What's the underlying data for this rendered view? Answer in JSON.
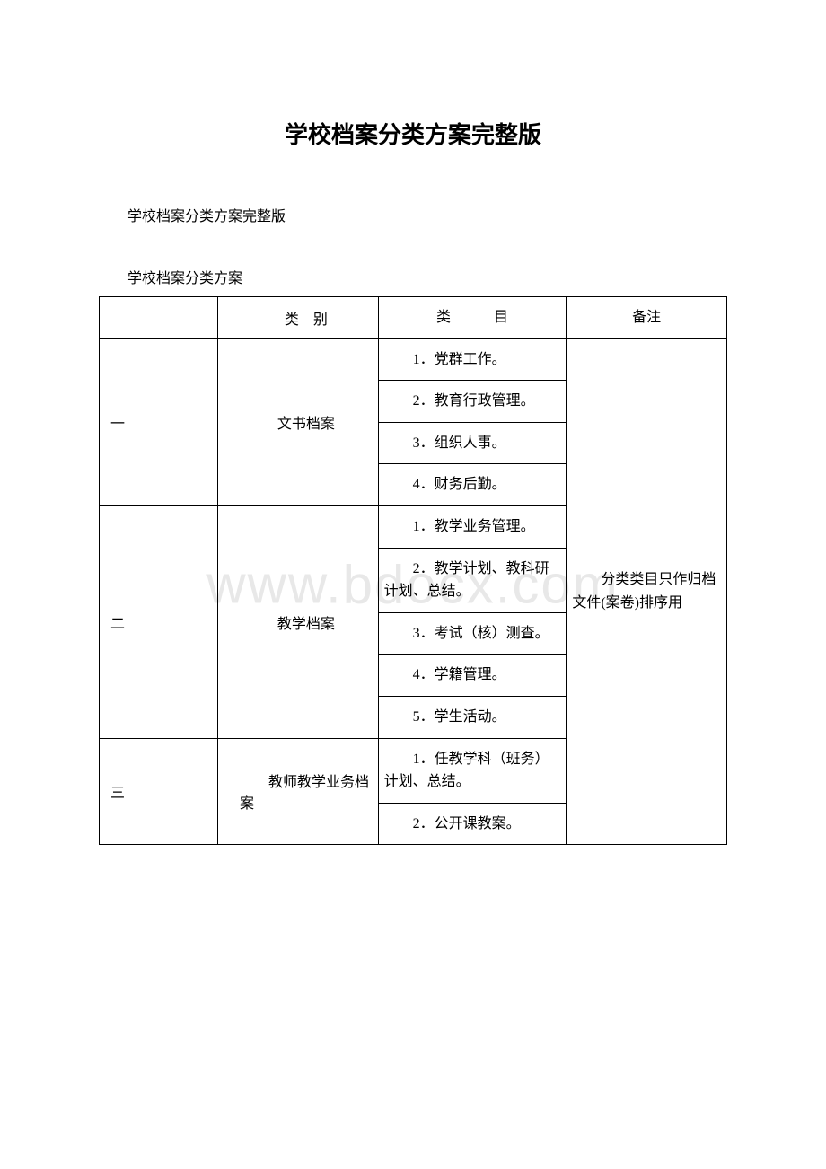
{
  "title": "学校档案分类方案完整版",
  "subtitle": "学校档案分类方案完整版",
  "tableCaption": "学校档案分类方案",
  "watermark": "www.bdocx.com",
  "header": {
    "col1": "",
    "col2": "类　别",
    "col3": "类　　　目",
    "col4": "备注"
  },
  "note": "　　分类类目只作归档文件(案卷)排序用",
  "rows": [
    {
      "num": "一",
      "category": "文书档案",
      "items": [
        "　　1．党群工作。",
        "　　2．教育行政管理。",
        "　　3．组织人事。",
        "　　4．财务后勤。"
      ]
    },
    {
      "num": "二",
      "category": "教学档案",
      "items": [
        "　　1．教学业务管理。",
        "　　2．教学计划、教科研计划、总结。",
        "　　3．考试（核）测查。",
        "　　4．学籍管理。",
        "　　5．学生活动。"
      ]
    },
    {
      "num": "三",
      "category": "　　教师教学业务档案",
      "items": [
        "　　1．任教学科（班务）计划、总结。",
        "　　2．公开课教案。"
      ]
    }
  ],
  "table_style": {
    "border_color": "#000000",
    "text_color": "#000000",
    "background_color": "#ffffff",
    "font_size": 16,
    "col_widths": [
      "17%",
      "23%",
      "27%",
      "23%"
    ]
  }
}
